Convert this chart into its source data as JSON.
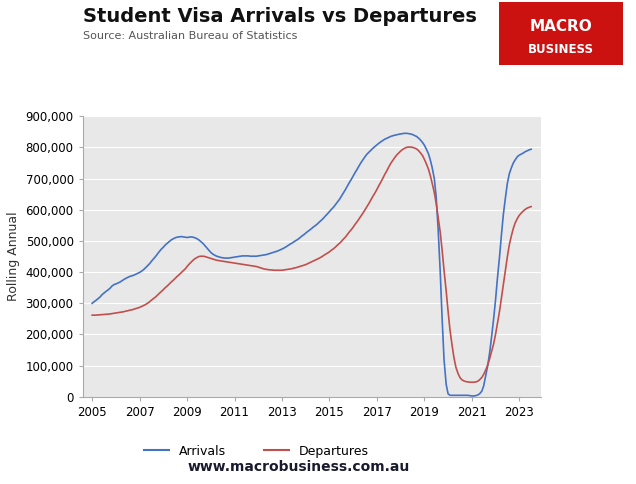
{
  "title": "Student Visa Arrivals vs Departures",
  "source": "Source: Australian Bureau of Statistics",
  "ylabel": "Rolling Annual",
  "website": "www.macrobusiness.com.au",
  "fig_bg_color": "#ffffff",
  "plot_bg_color": "#e8e8e8",
  "arrivals_color": "#4472C4",
  "departures_color": "#C0504D",
  "ylim": [
    0,
    900000
  ],
  "yticks": [
    0,
    100000,
    200000,
    300000,
    400000,
    500000,
    600000,
    700000,
    800000,
    900000
  ],
  "xticks": [
    2005,
    2007,
    2009,
    2011,
    2013,
    2015,
    2017,
    2019,
    2021,
    2023
  ],
  "xlim": [
    2004.6,
    2023.9
  ],
  "arrivals_x": [
    2005.0,
    2005.08,
    2005.17,
    2005.25,
    2005.33,
    2005.42,
    2005.5,
    2005.58,
    2005.67,
    2005.75,
    2005.83,
    2005.92,
    2006.0,
    2006.08,
    2006.17,
    2006.25,
    2006.33,
    2006.42,
    2006.5,
    2006.58,
    2006.67,
    2006.75,
    2006.83,
    2006.92,
    2007.0,
    2007.08,
    2007.17,
    2007.25,
    2007.33,
    2007.42,
    2007.5,
    2007.58,
    2007.67,
    2007.75,
    2007.83,
    2007.92,
    2008.0,
    2008.08,
    2008.17,
    2008.25,
    2008.33,
    2008.42,
    2008.5,
    2008.58,
    2008.67,
    2008.75,
    2008.83,
    2008.92,
    2009.0,
    2009.08,
    2009.17,
    2009.25,
    2009.33,
    2009.42,
    2009.5,
    2009.58,
    2009.67,
    2009.75,
    2009.83,
    2009.92,
    2010.0,
    2010.08,
    2010.17,
    2010.25,
    2010.33,
    2010.42,
    2010.5,
    2010.58,
    2010.67,
    2010.75,
    2010.83,
    2010.92,
    2011.0,
    2011.08,
    2011.17,
    2011.25,
    2011.33,
    2011.42,
    2011.5,
    2011.58,
    2011.67,
    2011.75,
    2011.83,
    2011.92,
    2012.0,
    2012.08,
    2012.17,
    2012.25,
    2012.33,
    2012.42,
    2012.5,
    2012.58,
    2012.67,
    2012.75,
    2012.83,
    2012.92,
    2013.0,
    2013.08,
    2013.17,
    2013.25,
    2013.33,
    2013.42,
    2013.5,
    2013.58,
    2013.67,
    2013.75,
    2013.83,
    2013.92,
    2014.0,
    2014.08,
    2014.17,
    2014.25,
    2014.33,
    2014.42,
    2014.5,
    2014.58,
    2014.67,
    2014.75,
    2014.83,
    2014.92,
    2015.0,
    2015.08,
    2015.17,
    2015.25,
    2015.33,
    2015.42,
    2015.5,
    2015.58,
    2015.67,
    2015.75,
    2015.83,
    2015.92,
    2016.0,
    2016.08,
    2016.17,
    2016.25,
    2016.33,
    2016.42,
    2016.5,
    2016.58,
    2016.67,
    2016.75,
    2016.83,
    2016.92,
    2017.0,
    2017.08,
    2017.17,
    2017.25,
    2017.33,
    2017.42,
    2017.5,
    2017.58,
    2017.67,
    2017.75,
    2017.83,
    2017.92,
    2018.0,
    2018.08,
    2018.17,
    2018.25,
    2018.33,
    2018.42,
    2018.5,
    2018.58,
    2018.67,
    2018.75,
    2018.83,
    2018.92,
    2019.0,
    2019.08,
    2019.17,
    2019.25,
    2019.33,
    2019.42,
    2019.5,
    2019.58,
    2019.67,
    2019.75,
    2019.83,
    2019.92,
    2020.0,
    2020.08,
    2020.17,
    2020.25,
    2020.33,
    2020.42,
    2020.5,
    2020.58,
    2020.67,
    2020.75,
    2020.83,
    2020.92,
    2021.0,
    2021.08,
    2021.17,
    2021.25,
    2021.33,
    2021.42,
    2021.5,
    2021.58,
    2021.67,
    2021.75,
    2021.83,
    2021.92,
    2022.0,
    2022.08,
    2022.17,
    2022.25,
    2022.33,
    2022.42,
    2022.5,
    2022.58,
    2022.67,
    2022.75,
    2022.83,
    2022.92,
    2023.0,
    2023.08,
    2023.17,
    2023.25,
    2023.33,
    2023.42,
    2023.5
  ],
  "arrivals_y": [
    300000,
    305000,
    310000,
    315000,
    320000,
    328000,
    333000,
    338000,
    343000,
    348000,
    355000,
    360000,
    362000,
    365000,
    368000,
    372000,
    376000,
    380000,
    383000,
    386000,
    388000,
    390000,
    393000,
    396000,
    399000,
    403000,
    408000,
    414000,
    420000,
    427000,
    435000,
    442000,
    450000,
    458000,
    466000,
    474000,
    480000,
    487000,
    493000,
    498000,
    503000,
    507000,
    510000,
    512000,
    513000,
    514000,
    513000,
    512000,
    511000,
    512000,
    513000,
    512000,
    510000,
    507000,
    503000,
    498000,
    492000,
    485000,
    478000,
    470000,
    463000,
    458000,
    454000,
    451000,
    449000,
    447000,
    446000,
    445000,
    445000,
    445000,
    446000,
    447000,
    448000,
    449000,
    450000,
    451000,
    452000,
    452000,
    452000,
    452000,
    451000,
    451000,
    451000,
    451000,
    452000,
    453000,
    454000,
    455000,
    456000,
    458000,
    460000,
    462000,
    464000,
    466000,
    468000,
    471000,
    474000,
    477000,
    481000,
    485000,
    489000,
    493000,
    497000,
    501000,
    505000,
    510000,
    515000,
    520000,
    525000,
    530000,
    535000,
    540000,
    545000,
    550000,
    555000,
    561000,
    567000,
    573000,
    580000,
    587000,
    594000,
    601000,
    608000,
    616000,
    624000,
    633000,
    643000,
    653000,
    664000,
    675000,
    686000,
    697000,
    708000,
    719000,
    730000,
    741000,
    751000,
    761000,
    770000,
    778000,
    785000,
    791000,
    797000,
    803000,
    808000,
    813000,
    818000,
    822000,
    826000,
    829000,
    832000,
    835000,
    837000,
    839000,
    840000,
    842000,
    843000,
    844000,
    845000,
    845000,
    844000,
    843000,
    841000,
    838000,
    835000,
    830000,
    824000,
    816000,
    807000,
    795000,
    780000,
    760000,
    735000,
    700000,
    640000,
    540000,
    400000,
    250000,
    120000,
    40000,
    10000,
    5000,
    5000,
    5000,
    5000,
    5000,
    5000,
    5000,
    5000,
    5000,
    5000,
    4000,
    3000,
    3000,
    4000,
    6000,
    10000,
    18000,
    35000,
    65000,
    100000,
    140000,
    190000,
    250000,
    310000,
    380000,
    450000,
    520000,
    585000,
    640000,
    685000,
    715000,
    735000,
    750000,
    760000,
    770000,
    775000,
    778000,
    782000,
    786000,
    789000,
    792000,
    794000
  ],
  "departures_x": [
    2005.0,
    2005.08,
    2005.17,
    2005.25,
    2005.33,
    2005.42,
    2005.5,
    2005.58,
    2005.67,
    2005.75,
    2005.83,
    2005.92,
    2006.0,
    2006.08,
    2006.17,
    2006.25,
    2006.33,
    2006.42,
    2006.5,
    2006.58,
    2006.67,
    2006.75,
    2006.83,
    2006.92,
    2007.0,
    2007.08,
    2007.17,
    2007.25,
    2007.33,
    2007.42,
    2007.5,
    2007.58,
    2007.67,
    2007.75,
    2007.83,
    2007.92,
    2008.0,
    2008.08,
    2008.17,
    2008.25,
    2008.33,
    2008.42,
    2008.5,
    2008.58,
    2008.67,
    2008.75,
    2008.83,
    2008.92,
    2009.0,
    2009.08,
    2009.17,
    2009.25,
    2009.33,
    2009.42,
    2009.5,
    2009.58,
    2009.67,
    2009.75,
    2009.83,
    2009.92,
    2010.0,
    2010.08,
    2010.17,
    2010.25,
    2010.33,
    2010.42,
    2010.5,
    2010.58,
    2010.67,
    2010.75,
    2010.83,
    2010.92,
    2011.0,
    2011.08,
    2011.17,
    2011.25,
    2011.33,
    2011.42,
    2011.5,
    2011.58,
    2011.67,
    2011.75,
    2011.83,
    2011.92,
    2012.0,
    2012.08,
    2012.17,
    2012.25,
    2012.33,
    2012.42,
    2012.5,
    2012.58,
    2012.67,
    2012.75,
    2012.83,
    2012.92,
    2013.0,
    2013.08,
    2013.17,
    2013.25,
    2013.33,
    2013.42,
    2013.5,
    2013.58,
    2013.67,
    2013.75,
    2013.83,
    2013.92,
    2014.0,
    2014.08,
    2014.17,
    2014.25,
    2014.33,
    2014.42,
    2014.5,
    2014.58,
    2014.67,
    2014.75,
    2014.83,
    2014.92,
    2015.0,
    2015.08,
    2015.17,
    2015.25,
    2015.33,
    2015.42,
    2015.5,
    2015.58,
    2015.67,
    2015.75,
    2015.83,
    2015.92,
    2016.0,
    2016.08,
    2016.17,
    2016.25,
    2016.33,
    2016.42,
    2016.5,
    2016.58,
    2016.67,
    2016.75,
    2016.83,
    2016.92,
    2017.0,
    2017.08,
    2017.17,
    2017.25,
    2017.33,
    2017.42,
    2017.5,
    2017.58,
    2017.67,
    2017.75,
    2017.83,
    2017.92,
    2018.0,
    2018.08,
    2018.17,
    2018.25,
    2018.33,
    2018.42,
    2018.5,
    2018.58,
    2018.67,
    2018.75,
    2018.83,
    2018.92,
    2019.0,
    2019.08,
    2019.17,
    2019.25,
    2019.33,
    2019.42,
    2019.5,
    2019.58,
    2019.67,
    2019.75,
    2019.83,
    2019.92,
    2020.0,
    2020.08,
    2020.17,
    2020.25,
    2020.33,
    2020.42,
    2020.5,
    2020.58,
    2020.67,
    2020.75,
    2020.83,
    2020.92,
    2021.0,
    2021.08,
    2021.17,
    2021.25,
    2021.33,
    2021.42,
    2021.5,
    2021.58,
    2021.67,
    2021.75,
    2021.83,
    2021.92,
    2022.0,
    2022.08,
    2022.17,
    2022.25,
    2022.33,
    2022.42,
    2022.5,
    2022.58,
    2022.67,
    2022.75,
    2022.83,
    2022.92,
    2023.0,
    2023.08,
    2023.17,
    2023.25,
    2023.33,
    2023.42,
    2023.5
  ],
  "departures_y": [
    262000,
    262000,
    262000,
    263000,
    263000,
    264000,
    264000,
    265000,
    265000,
    266000,
    267000,
    268000,
    269000,
    270000,
    271000,
    272000,
    273000,
    275000,
    276000,
    278000,
    279000,
    281000,
    283000,
    285000,
    287000,
    290000,
    293000,
    296000,
    300000,
    305000,
    310000,
    315000,
    320000,
    326000,
    332000,
    338000,
    344000,
    350000,
    356000,
    362000,
    368000,
    374000,
    380000,
    386000,
    392000,
    398000,
    404000,
    410000,
    418000,
    425000,
    432000,
    438000,
    443000,
    447000,
    450000,
    451000,
    451000,
    450000,
    448000,
    446000,
    444000,
    442000,
    440000,
    438000,
    437000,
    436000,
    435000,
    434000,
    433000,
    432000,
    431000,
    430000,
    429000,
    428000,
    427000,
    426000,
    425000,
    424000,
    423000,
    422000,
    421000,
    420000,
    419000,
    418000,
    416000,
    414000,
    412000,
    410000,
    409000,
    408000,
    407000,
    407000,
    406000,
    406000,
    406000,
    406000,
    406000,
    407000,
    408000,
    409000,
    410000,
    411000,
    413000,
    414000,
    416000,
    418000,
    420000,
    422000,
    424000,
    427000,
    430000,
    433000,
    436000,
    439000,
    442000,
    445000,
    449000,
    453000,
    457000,
    461000,
    465000,
    470000,
    475000,
    480000,
    486000,
    492000,
    498000,
    505000,
    512000,
    520000,
    528000,
    536000,
    544000,
    553000,
    562000,
    571000,
    580000,
    590000,
    600000,
    610000,
    621000,
    632000,
    643000,
    654000,
    665000,
    677000,
    689000,
    701000,
    713000,
    725000,
    737000,
    748000,
    758000,
    767000,
    775000,
    782000,
    788000,
    793000,
    797000,
    800000,
    801000,
    801000,
    800000,
    798000,
    795000,
    790000,
    783000,
    774000,
    762000,
    748000,
    731000,
    710000,
    685000,
    655000,
    620000,
    577000,
    528000,
    470000,
    406000,
    340000,
    275000,
    215000,
    165000,
    125000,
    95000,
    75000,
    62000,
    55000,
    51000,
    49000,
    48000,
    47000,
    47000,
    47000,
    48000,
    50000,
    55000,
    62000,
    72000,
    85000,
    102000,
    122000,
    145000,
    170000,
    200000,
    235000,
    275000,
    318000,
    363000,
    408000,
    450000,
    487000,
    517000,
    540000,
    558000,
    572000,
    582000,
    589000,
    596000,
    601000,
    605000,
    608000,
    610000
  ],
  "macro_box_color": "#cc1111",
  "macro_text_color": "#ffffff",
  "footer_color": "#1a1a2e",
  "legend_entries": [
    "Arrivals",
    "Departures"
  ]
}
